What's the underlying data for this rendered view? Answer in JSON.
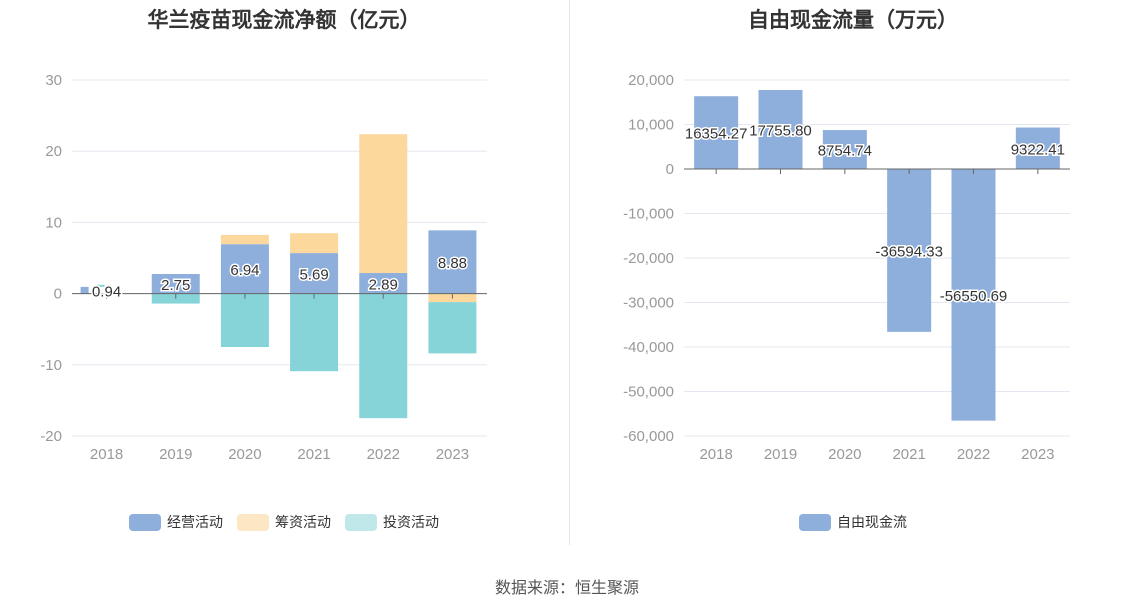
{
  "source_text": "数据来源：恒生聚源",
  "colors": {
    "operating": "#8eaedc",
    "financing": "#fcd89c",
    "investing": "#87d4d8",
    "operating_legend": "#8eaedc",
    "financing_legend": "#fde6c4",
    "investing_legend": "#c0e8ea",
    "free": "#8eaedc",
    "grid": "#e4e7ef",
    "axis": "#666666",
    "tick": "#999999"
  },
  "chart_data": [
    {
      "type": "bar",
      "stacked": true,
      "title": "华兰疫苗现金流净额（亿元）",
      "categories": [
        "2018",
        "2019",
        "2020",
        "2021",
        "2022",
        "2023"
      ],
      "ylim": [
        -20,
        30
      ],
      "yticks": [
        "30",
        "20",
        "10",
        "0",
        "-10",
        "-20"
      ],
      "ytick_values": [
        30,
        20,
        10,
        0,
        -10,
        -20
      ],
      "grid": true,
      "legend_position": "bottom",
      "series": [
        {
          "name": "经营活动",
          "values": [
            0.94,
            2.75,
            6.94,
            5.69,
            2.89,
            8.88
          ],
          "labels": [
            "0.94",
            "2.75",
            "6.94",
            "5.69",
            "2.89",
            "8.88"
          ]
        },
        {
          "name": "筹资活动",
          "values": [
            0,
            0,
            1.3,
            2.8,
            19.5,
            -1.2
          ]
        },
        {
          "name": "投资活动",
          "values": [
            0.3,
            -1.4,
            -7.5,
            -10.9,
            -17.5,
            -7.2
          ]
        }
      ]
    },
    {
      "type": "bar",
      "title": "自由现金流量（万元）",
      "categories": [
        "2018",
        "2019",
        "2020",
        "2021",
        "2022",
        "2023"
      ],
      "ylim": [
        -60000,
        20000
      ],
      "yticks": [
        "20,000",
        "10,000",
        "0",
        "-10,000",
        "-20,000",
        "-30,000",
        "-40,000",
        "-50,000",
        "-60,000"
      ],
      "ytick_values": [
        20000,
        10000,
        0,
        -10000,
        -20000,
        -30000,
        -40000,
        -50000,
        -60000
      ],
      "grid": true,
      "legend_position": "bottom",
      "series": [
        {
          "name": "自由现金流",
          "values": [
            16354.27,
            17755.8,
            8754.74,
            -36594.33,
            -56550.69,
            9322.41
          ],
          "labels": [
            "16354.27",
            "17755.80",
            "8754.74",
            "-36594.33",
            "-56550.69",
            "9322.41"
          ]
        }
      ]
    }
  ]
}
